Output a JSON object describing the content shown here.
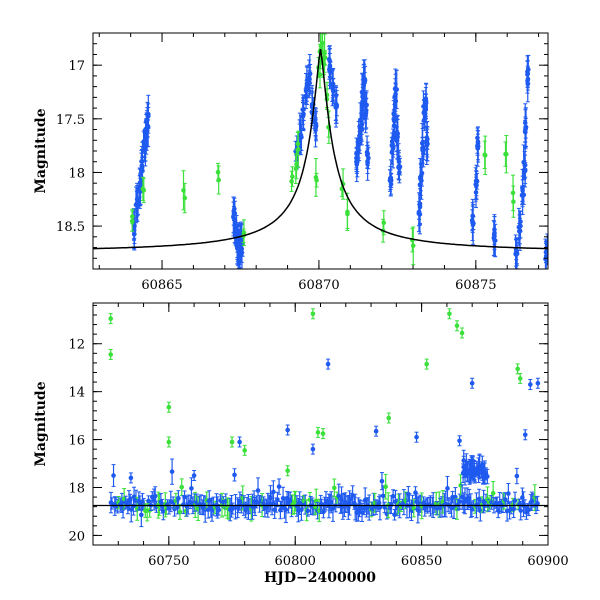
{
  "colors": {
    "blue": "#1f5af0",
    "green": "#3be03b",
    "model": "#000000",
    "frame": "#000000"
  },
  "chart_data": [
    {
      "type": "scatter",
      "title": "",
      "xlabel": "",
      "ylabel": "Magnitude",
      "xlim": [
        60862.8,
        60877.3
      ],
      "ylim": [
        18.9,
        16.7
      ],
      "y_inverted": true,
      "xticks": [
        60865,
        60870,
        60875
      ],
      "xtick_labels": [
        "60865",
        "60870",
        "60875"
      ],
      "yticks": [
        17,
        17.5,
        18,
        18.5
      ],
      "ytick_labels": [
        "17",
        "17.5",
        "18",
        "18.5"
      ],
      "grid": false,
      "model_curve": {
        "type": "line",
        "peak_x": 60870.05,
        "peak_mag": 16.85,
        "baseline_mag": 18.75,
        "color": "black"
      },
      "series": [
        {
          "color": "blue",
          "points": [
            [
              60864.1,
              18.55
            ],
            [
              60864.2,
              18.3
            ],
            [
              60864.3,
              18.15
            ],
            [
              60864.35,
              17.95
            ],
            [
              60864.45,
              17.75
            ],
            [
              60864.5,
              17.6
            ],
            [
              60864.55,
              17.5
            ],
            [
              60867.3,
              18.4
            ],
            [
              60867.35,
              18.55
            ],
            [
              60867.4,
              18.65
            ],
            [
              60867.45,
              18.75
            ],
            [
              60867.5,
              18.6
            ],
            [
              60867.55,
              18.7
            ],
            [
              60869.3,
              17.8
            ],
            [
              60869.4,
              17.65
            ],
            [
              60869.5,
              17.45
            ],
            [
              60869.6,
              17.25
            ],
            [
              60869.7,
              17.1
            ],
            [
              60869.8,
              17.4
            ],
            [
              60869.9,
              17.55
            ],
            [
              60870.35,
              17.0
            ],
            [
              60870.45,
              17.2
            ],
            [
              60870.55,
              17.35
            ],
            [
              60871.2,
              17.9
            ],
            [
              60871.3,
              17.7
            ],
            [
              60871.35,
              17.55
            ],
            [
              60871.4,
              17.3
            ],
            [
              60871.45,
              17.15
            ],
            [
              60871.5,
              17.4
            ],
            [
              60871.55,
              17.85
            ],
            [
              60872.3,
              18.05
            ],
            [
              60872.35,
              17.75
            ],
            [
              60872.4,
              17.5
            ],
            [
              60872.45,
              17.25
            ],
            [
              60872.5,
              17.65
            ],
            [
              60872.55,
              17.95
            ],
            [
              60873.2,
              18.35
            ],
            [
              60873.25,
              18.05
            ],
            [
              60873.3,
              17.75
            ],
            [
              60873.35,
              17.45
            ],
            [
              60873.4,
              17.35
            ],
            [
              60873.45,
              17.7
            ],
            [
              60874.9,
              18.45
            ],
            [
              60875.0,
              18.1
            ],
            [
              60875.05,
              17.75
            ],
            [
              60875.6,
              18.6
            ],
            [
              60876.3,
              18.75
            ],
            [
              60876.4,
              18.5
            ],
            [
              60876.5,
              18.2
            ],
            [
              60876.55,
              17.95
            ],
            [
              60876.6,
              17.6
            ],
            [
              60876.65,
              17.1
            ],
            [
              60877.25,
              18.75
            ]
          ]
        },
        {
          "color": "green",
          "points": [
            [
              60864.05,
              18.45
            ],
            [
              60864.4,
              18.15
            ],
            [
              60865.7,
              18.2
            ],
            [
              60866.8,
              18.0
            ],
            [
              60867.6,
              18.55
            ],
            [
              60869.15,
              18.1
            ],
            [
              60869.25,
              17.9
            ],
            [
              60869.35,
              17.75
            ],
            [
              60869.9,
              18.1
            ],
            [
              60870.0,
              17.05
            ],
            [
              60870.05,
              16.85
            ],
            [
              60870.1,
              16.8
            ],
            [
              60870.15,
              16.95
            ],
            [
              60870.2,
              16.9
            ],
            [
              60870.25,
              17.3
            ],
            [
              60870.3,
              17.55
            ],
            [
              60870.75,
              18.15
            ],
            [
              60870.9,
              18.35
            ],
            [
              60872.05,
              18.5
            ],
            [
              60873.0,
              18.7
            ],
            [
              60875.3,
              17.85
            ],
            [
              60875.95,
              17.85
            ],
            [
              60876.2,
              18.25
            ]
          ]
        }
      ]
    },
    {
      "type": "scatter",
      "title": "",
      "xlabel": "HJD−2400000",
      "ylabel": "Magnitude",
      "xlim": [
        60720,
        60900
      ],
      "ylim": [
        20.4,
        10.3
      ],
      "y_inverted": true,
      "xticks": [
        60750,
        60800,
        60850,
        60900
      ],
      "xtick_labels": [
        "60750",
        "60800",
        "60850",
        "60900"
      ],
      "yticks": [
        12,
        14,
        16,
        18,
        20
      ],
      "ytick_labels": [
        "12",
        "14",
        "16",
        "18",
        "20"
      ],
      "grid": false,
      "model_curve": {
        "type": "line",
        "baseline_mag": 18.75,
        "color": "black"
      },
      "series": [
        {
          "color": "blue",
          "outliers": [
            [
              60813,
              12.85
            ],
            [
              60870,
              13.65
            ],
            [
              60893,
              13.7
            ],
            [
              60896,
              13.65
            ],
            [
              60891,
              15.8
            ],
            [
              60832,
              15.65
            ],
            [
              60848,
              15.9
            ],
            [
              60865,
              16.05
            ],
            [
              60797,
              15.6
            ],
            [
              60807,
              16.4
            ],
            [
              60778,
              16.1
            ],
            [
              60760,
              17.5
            ],
            [
              60735,
              17.6
            ]
          ]
        },
        {
          "color": "green",
          "outliers": [
            [
              60727,
              10.95
            ],
            [
              60727,
              12.45
            ],
            [
              60750,
              14.65
            ],
            [
              60750,
              16.1
            ],
            [
              60807,
              10.75
            ],
            [
              60809,
              15.7
            ],
            [
              60811,
              15.75
            ],
            [
              60837,
              15.1
            ],
            [
              60852,
              12.85
            ],
            [
              60861,
              10.75
            ],
            [
              60864,
              11.25
            ],
            [
              60866,
              11.55
            ],
            [
              60888,
              13.05
            ],
            [
              60889,
              13.45
            ],
            [
              60775,
              16.1
            ],
            [
              60780,
              16.45
            ],
            [
              60797,
              17.3
            ]
          ]
        }
      ]
    }
  ]
}
